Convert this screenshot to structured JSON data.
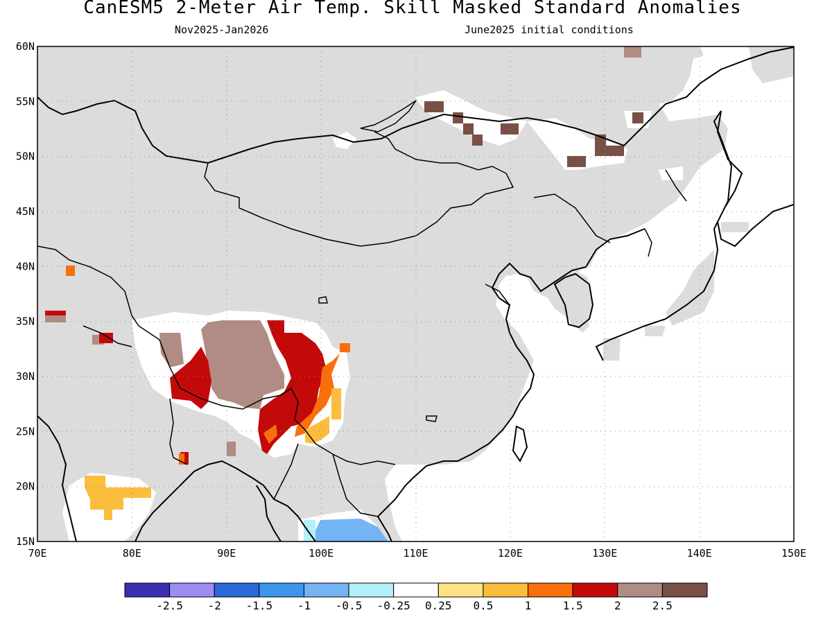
{
  "title": "CanESM5 2-Meter Air Temp. Skill Masked Standard Anomalies",
  "subtitle_left": "Nov2025-Jan2026",
  "subtitle_right": "June2025 initial conditions",
  "map": {
    "projection": "equirectangular",
    "lon_range": [
      70,
      150
    ],
    "lat_range": [
      15,
      60
    ],
    "grid": "dotted",
    "land_color": "#dcdcdc",
    "ocean_color": "#ffffff",
    "coastline_color": "#000000"
  },
  "x_ticks": [
    "70E",
    "80E",
    "90E",
    "100E",
    "110E",
    "120E",
    "130E",
    "140E",
    "150E"
  ],
  "y_ticks": [
    "15N",
    "20N",
    "25N",
    "30N",
    "35N",
    "40N",
    "45N",
    "50N",
    "55N",
    "60N"
  ],
  "colorbar": {
    "colors": [
      "#3a2fb0",
      "#9b8ef0",
      "#2a68d8",
      "#3c96ee",
      "#74b4f4",
      "#b3f0fa",
      "#ffffff",
      "#fde381",
      "#fcbc3c",
      "#f86f0c",
      "#c30a0a",
      "#b08c84",
      "#785046"
    ],
    "labels": [
      "-2.5",
      "-2",
      "-1.5",
      "-1",
      "-0.5",
      "-0.25",
      "0.25",
      "0.5",
      "1",
      "1.5",
      "2",
      "2.5"
    ]
  },
  "anomaly_regions": [
    {
      "region": "Tibetan Plateau",
      "level": "2.5",
      "color": "#b08c84"
    },
    {
      "region": "Sichuan / Eastern Tibet",
      "level": "2",
      "color": "#c30a0a"
    },
    {
      "region": "Southwest Yunnan",
      "level": "1.5",
      "color": "#f86f0c"
    },
    {
      "region": "Central India",
      "level": "0.5",
      "color": "#fcbc3c"
    },
    {
      "region": "Indochina",
      "level": "-0.5",
      "color": "#74b4f4"
    },
    {
      "region": "Russian Far East",
      "level": "2.5+",
      "color": "#785046"
    }
  ]
}
